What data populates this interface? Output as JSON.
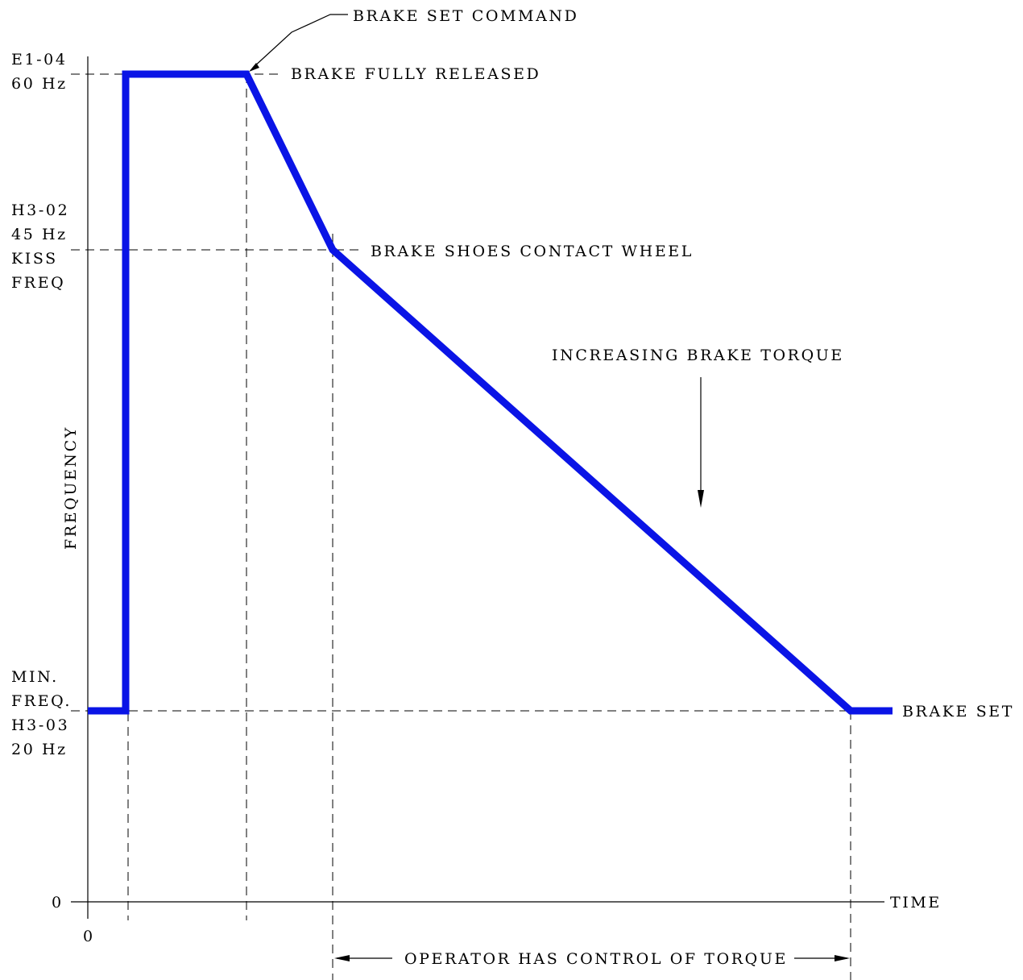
{
  "colors": {
    "curve": "#0a14e6",
    "ink": "#000000",
    "background": "#ffffff"
  },
  "chart_data": {
    "type": "line",
    "ylabel": "FREQUENCY",
    "xlabel": "TIME",
    "y_origin_label": "0",
    "x_origin_label": "0",
    "y_levels": [
      {
        "id": "e1-04",
        "hz": 60,
        "label_lines": [
          "E1-04",
          "60 Hz"
        ]
      },
      {
        "id": "h3-02",
        "hz": 45,
        "label_lines": [
          "H3-02",
          "45 Hz",
          "KISS",
          "FREQ"
        ]
      },
      {
        "id": "h3-03",
        "hz": 20,
        "label_lines": [
          "MIN.",
          "FREQ.",
          "H3-03",
          "20 Hz"
        ]
      }
    ],
    "series": [
      {
        "values_hz": [
          20,
          20,
          60,
          60,
          45,
          20,
          20
        ],
        "time_events": [
          "start",
          "t1",
          "t1",
          "t2",
          "t3",
          "t4",
          "end"
        ]
      }
    ],
    "annotations": {
      "brake_set_command": "BRAKE SET COMMAND",
      "brake_fully_released": "BRAKE FULLY RELEASED",
      "brake_shoes_contact": "BRAKE SHOES CONTACT WHEEL",
      "increasing_torque": "INCREASING BRAKE TORQUE",
      "brake_set": "BRAKE SET",
      "operator_control": "OPERATOR HAS CONTROL OF TORQUE"
    }
  }
}
